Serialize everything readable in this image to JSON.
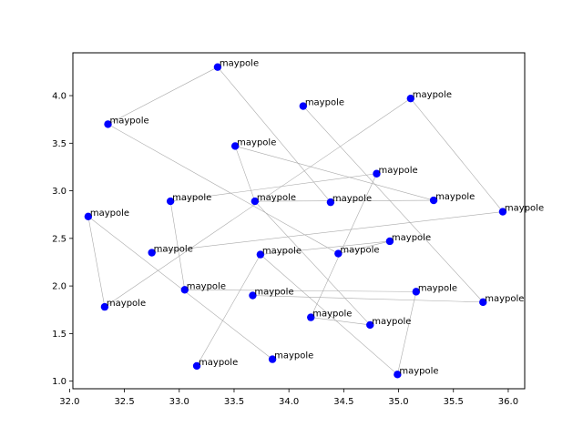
{
  "chart_data": {
    "type": "scatter",
    "title": "",
    "xlabel": "",
    "ylabel": "",
    "xlim": [
      32.03,
      36.15
    ],
    "ylim": [
      0.92,
      4.45
    ],
    "xticks": [
      32.0,
      32.5,
      33.0,
      33.5,
      34.0,
      34.5,
      35.0,
      35.5,
      36.0
    ],
    "yticks": [
      1.0,
      1.5,
      2.0,
      2.5,
      3.0,
      3.5,
      4.0
    ],
    "xtick_labels": [
      "32.0",
      "32.5",
      "33.0",
      "33.5",
      "34.0",
      "34.5",
      "35.0",
      "35.5",
      "36.0"
    ],
    "ytick_labels": [
      "1.0",
      "1.5",
      "2.0",
      "2.5",
      "3.0",
      "3.5",
      "4.0"
    ],
    "grid": false,
    "point_color": "#0000ff",
    "line_color": "#aaaaaa",
    "points": [
      {
        "x": 33.35,
        "y": 4.3,
        "label": "maypole"
      },
      {
        "x": 32.35,
        "y": 3.7,
        "label": "maypole"
      },
      {
        "x": 34.13,
        "y": 3.89,
        "label": "maypole"
      },
      {
        "x": 35.11,
        "y": 3.97,
        "label": "maypole"
      },
      {
        "x": 33.51,
        "y": 3.47,
        "label": "maypole"
      },
      {
        "x": 34.8,
        "y": 3.18,
        "label": "maypole"
      },
      {
        "x": 32.92,
        "y": 2.89,
        "label": "maypole"
      },
      {
        "x": 33.69,
        "y": 2.89,
        "label": "maypole"
      },
      {
        "x": 34.38,
        "y": 2.88,
        "label": "maypole"
      },
      {
        "x": 35.32,
        "y": 2.9,
        "label": "maypole"
      },
      {
        "x": 35.95,
        "y": 2.78,
        "label": "maypole"
      },
      {
        "x": 32.17,
        "y": 2.73,
        "label": "maypole"
      },
      {
        "x": 32.75,
        "y": 2.35,
        "label": "maypole"
      },
      {
        "x": 33.74,
        "y": 2.33,
        "label": "maypole"
      },
      {
        "x": 34.45,
        "y": 2.34,
        "label": "maypole"
      },
      {
        "x": 34.92,
        "y": 2.47,
        "label": "maypole"
      },
      {
        "x": 33.05,
        "y": 1.96,
        "label": "maypole"
      },
      {
        "x": 33.67,
        "y": 1.9,
        "label": "maypole"
      },
      {
        "x": 35.16,
        "y": 1.94,
        "label": "maypole"
      },
      {
        "x": 35.77,
        "y": 1.83,
        "label": "maypole"
      },
      {
        "x": 32.32,
        "y": 1.78,
        "label": "maypole"
      },
      {
        "x": 34.2,
        "y": 1.67,
        "label": "maypole"
      },
      {
        "x": 34.74,
        "y": 1.59,
        "label": "maypole"
      },
      {
        "x": 33.85,
        "y": 1.23,
        "label": "maypole"
      },
      {
        "x": 33.16,
        "y": 1.16,
        "label": "maypole"
      },
      {
        "x": 34.99,
        "y": 1.07,
        "label": "maypole"
      }
    ],
    "edges": [
      [
        0,
        8
      ],
      [
        1,
        14
      ],
      [
        2,
        19
      ],
      [
        3,
        10
      ],
      [
        4,
        7
      ],
      [
        4,
        9
      ],
      [
        5,
        6
      ],
      [
        5,
        21
      ],
      [
        3,
        20
      ],
      [
        7,
        9
      ],
      [
        7,
        22
      ],
      [
        6,
        16
      ],
      [
        11,
        20
      ],
      [
        11,
        23
      ],
      [
        12,
        10
      ],
      [
        13,
        24
      ],
      [
        13,
        25
      ],
      [
        13,
        15
      ],
      [
        16,
        18
      ],
      [
        17,
        19
      ],
      [
        18,
        25
      ],
      [
        21,
        22
      ],
      [
        0,
        1
      ],
      [
        15,
        14
      ]
    ]
  }
}
